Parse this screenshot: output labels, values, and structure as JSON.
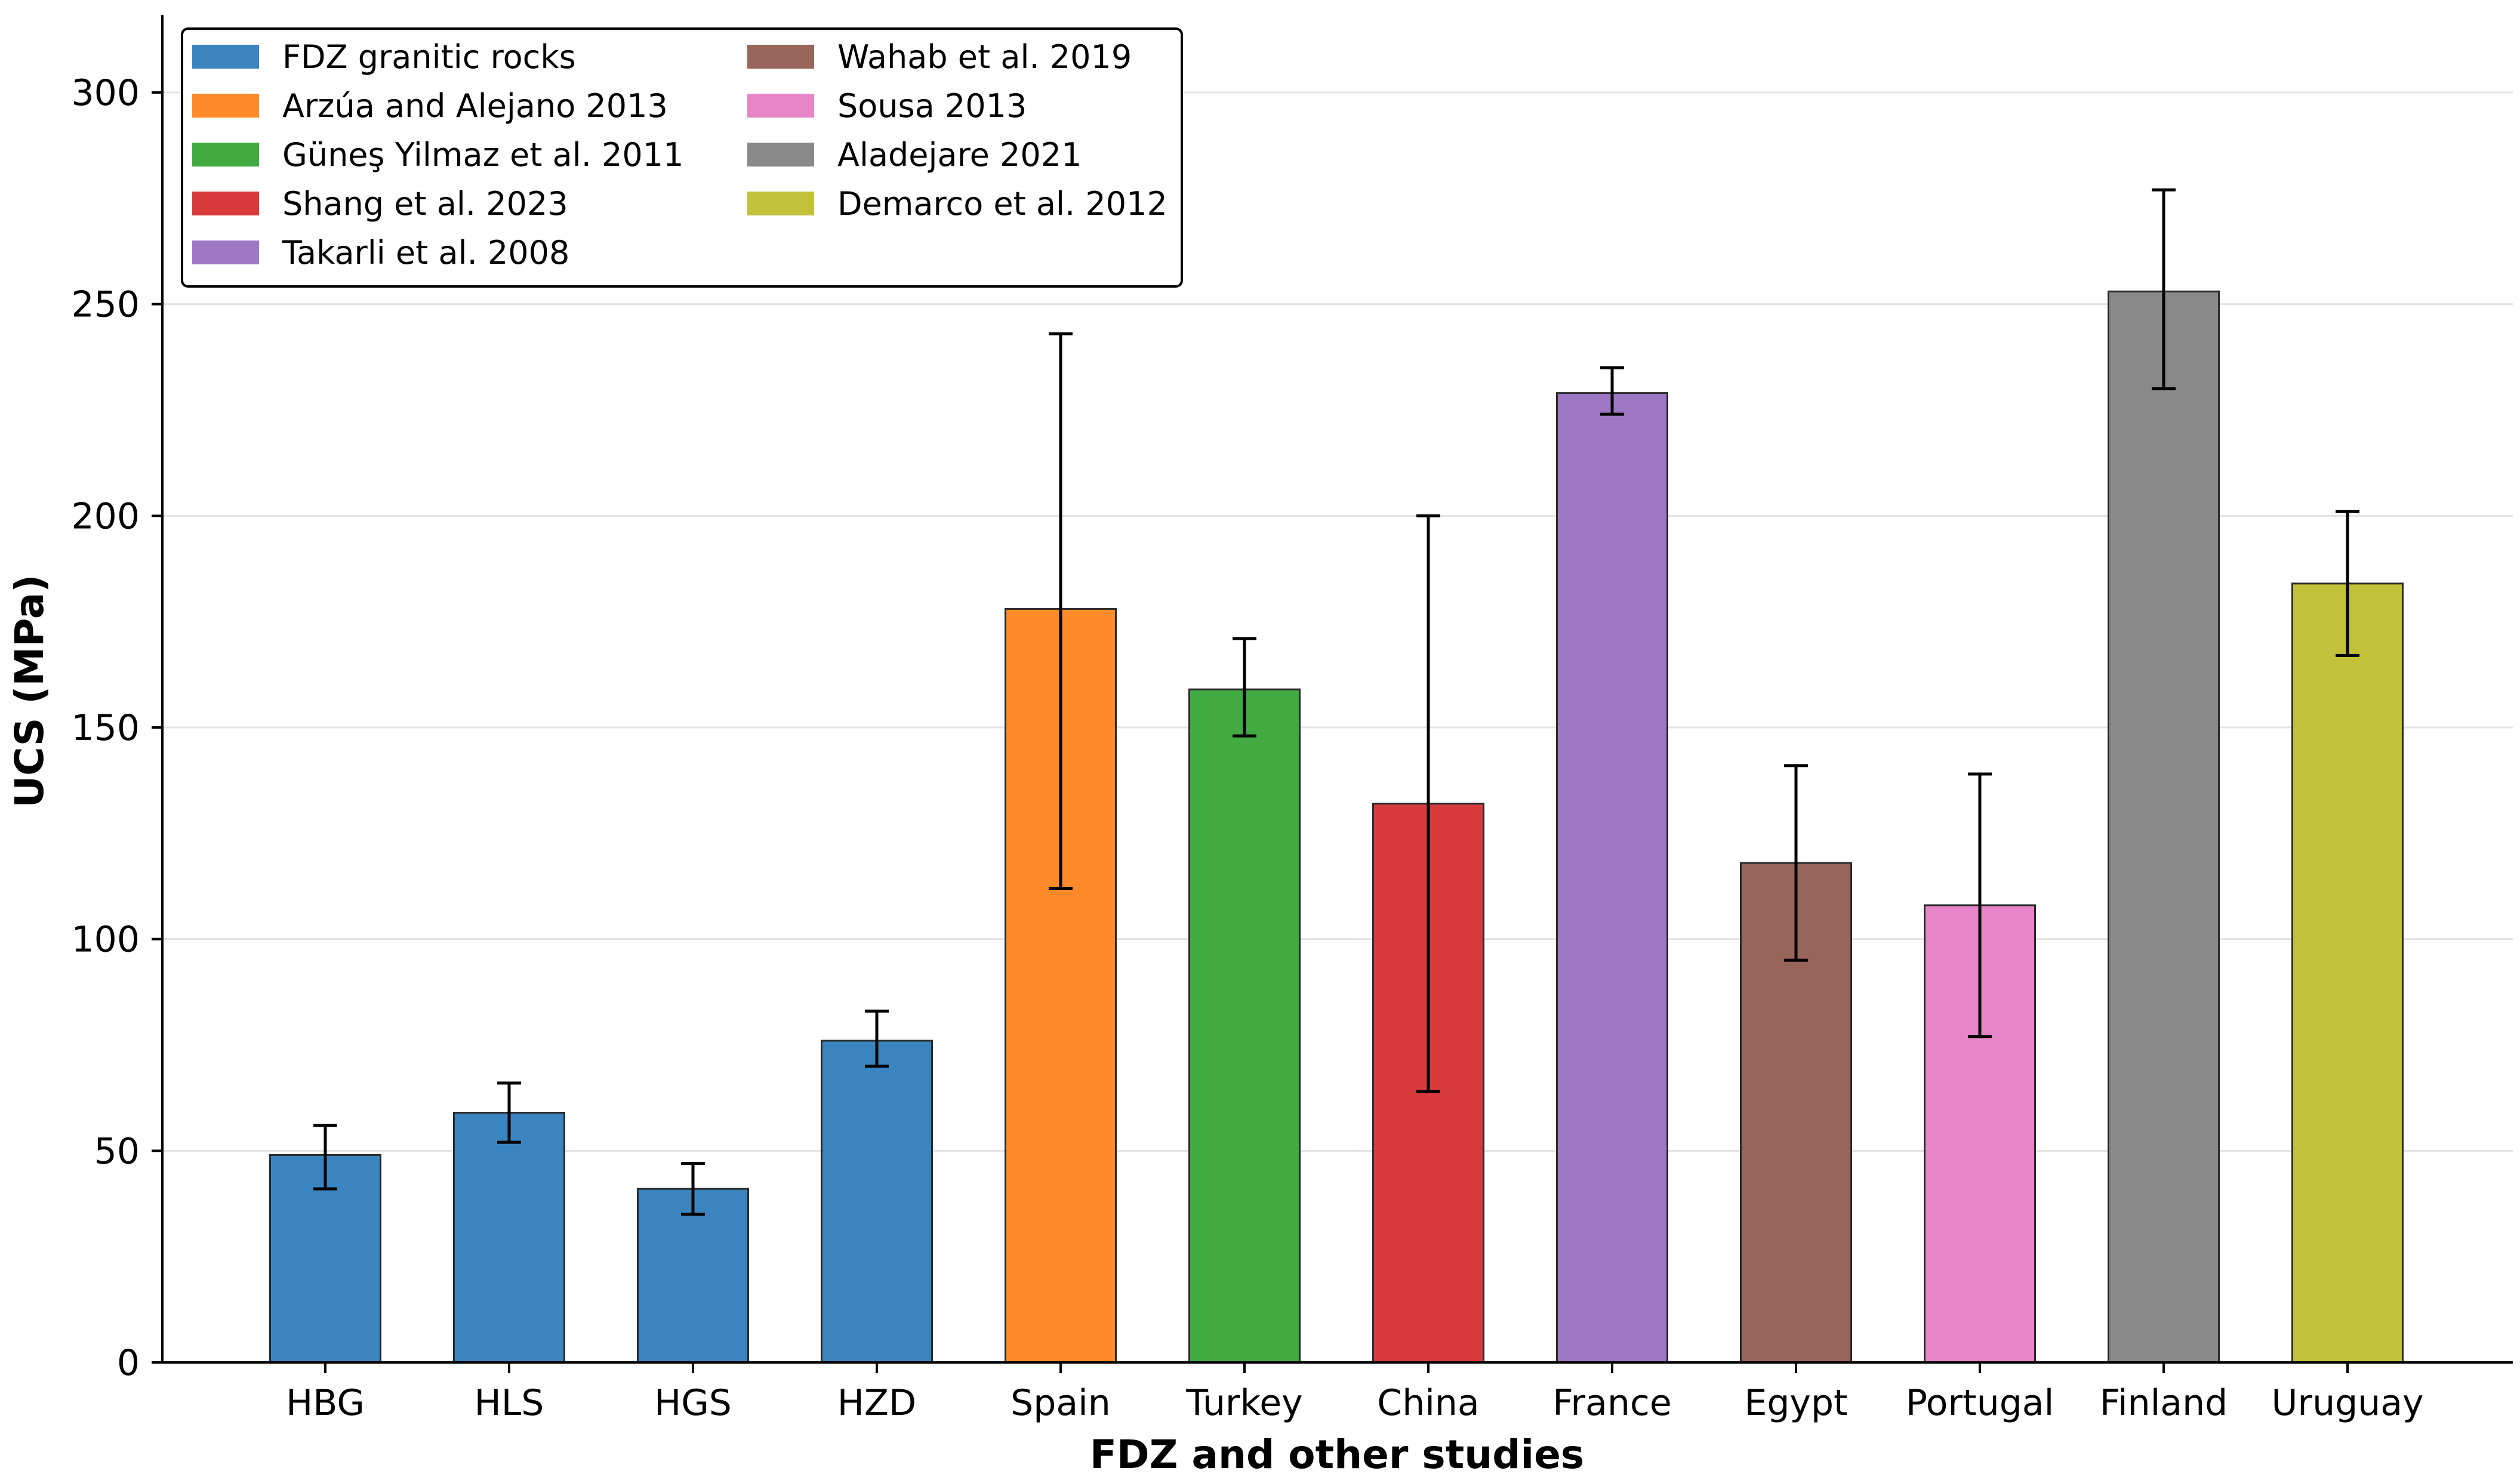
{
  "chart_data": {
    "type": "bar",
    "title": "",
    "xlabel": "FDZ and other studies",
    "ylabel": "UCS (MPa)",
    "ylim": [
      0,
      320
    ],
    "yticks": [
      0,
      50,
      100,
      150,
      200,
      250,
      300
    ],
    "grid": "horizontal",
    "legend_position": "top-left",
    "categories": [
      "HBG",
      "HLS",
      "HGS",
      "HZD",
      "Spain",
      "Turkey",
      "China",
      "France",
      "Egypt",
      "Portugal",
      "Finland",
      "Uruguay"
    ],
    "values": [
      49,
      59,
      41,
      76,
      178,
      159,
      132,
      229,
      118,
      108,
      253,
      184
    ],
    "error_low": [
      41,
      52,
      35,
      70,
      112,
      148,
      64,
      224,
      95,
      77,
      230,
      167
    ],
    "error_high": [
      56,
      66,
      47,
      83,
      243,
      171,
      200,
      235,
      141,
      139,
      277,
      201
    ],
    "bar_source": [
      0,
      0,
      0,
      0,
      1,
      2,
      3,
      4,
      5,
      6,
      7,
      8
    ],
    "legend": [
      {
        "label": "FDZ granitic rocks",
        "color": "#3a85bf"
      },
      {
        "label": "Arzúa and Alejano 2013",
        "color": "#ff8a29"
      },
      {
        "label": "Güneş Yilmaz et al. 2011",
        "color": "#41aa41"
      },
      {
        "label": "Shang et al. 2023",
        "color": "#d93b3c"
      },
      {
        "label": "Takarli et al. 2008",
        "color": "#9e78c4"
      },
      {
        "label": "Wahab et al. 2019",
        "color": "#98655b"
      },
      {
        "label": "Sousa 2013",
        "color": "#e685c7"
      },
      {
        "label": "Aladejare 2021",
        "color": "#898989"
      },
      {
        "label": "Demarco et al. 2012",
        "color": "#c3c13a"
      }
    ]
  }
}
